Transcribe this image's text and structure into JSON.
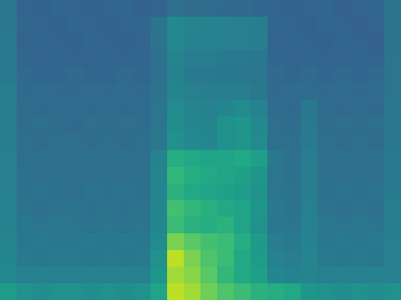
{
  "chart_data": {
    "type": "heatmap",
    "color": "viridis",
    "tick_labels": false,
    "zlim": [
      0,
      1
    ],
    "values": [
      [
        0.4,
        0.32,
        0.31,
        0.33,
        0.32,
        0.31,
        0.32,
        0.33,
        0.31,
        0.32,
        0.36,
        0.35,
        0.35,
        0.34,
        0.34,
        0.33,
        0.32,
        0.31,
        0.32,
        0.33,
        0.31,
        0.32,
        0.33,
        0.38
      ],
      [
        0.4,
        0.33,
        0.32,
        0.31,
        0.33,
        0.32,
        0.31,
        0.32,
        0.33,
        0.38,
        0.47,
        0.45,
        0.44,
        0.44,
        0.43,
        0.42,
        0.33,
        0.32,
        0.31,
        0.33,
        0.32,
        0.31,
        0.32,
        0.38
      ],
      [
        0.41,
        0.32,
        0.33,
        0.32,
        0.31,
        0.33,
        0.32,
        0.31,
        0.32,
        0.38,
        0.47,
        0.44,
        0.44,
        0.43,
        0.43,
        0.42,
        0.32,
        0.33,
        0.32,
        0.31,
        0.33,
        0.32,
        0.31,
        0.38
      ],
      [
        0.41,
        0.33,
        0.32,
        0.33,
        0.32,
        0.32,
        0.33,
        0.32,
        0.33,
        0.37,
        0.45,
        0.42,
        0.42,
        0.41,
        0.41,
        0.4,
        0.33,
        0.32,
        0.33,
        0.32,
        0.32,
        0.33,
        0.32,
        0.39
      ],
      [
        0.41,
        0.34,
        0.33,
        0.33,
        0.34,
        0.33,
        0.33,
        0.34,
        0.33,
        0.37,
        0.44,
        0.41,
        0.41,
        0.4,
        0.4,
        0.39,
        0.34,
        0.33,
        0.34,
        0.33,
        0.34,
        0.33,
        0.34,
        0.39
      ],
      [
        0.42,
        0.34,
        0.35,
        0.34,
        0.34,
        0.35,
        0.34,
        0.35,
        0.34,
        0.38,
        0.45,
        0.43,
        0.42,
        0.42,
        0.42,
        0.4,
        0.34,
        0.35,
        0.35,
        0.34,
        0.35,
        0.34,
        0.35,
        0.39
      ],
      [
        0.42,
        0.35,
        0.34,
        0.35,
        0.35,
        0.34,
        0.35,
        0.34,
        0.35,
        0.39,
        0.48,
        0.45,
        0.44,
        0.46,
        0.48,
        0.44,
        0.35,
        0.34,
        0.4,
        0.35,
        0.34,
        0.35,
        0.34,
        0.4
      ],
      [
        0.42,
        0.35,
        0.36,
        0.35,
        0.34,
        0.36,
        0.35,
        0.36,
        0.35,
        0.39,
        0.49,
        0.46,
        0.45,
        0.5,
        0.52,
        0.47,
        0.36,
        0.35,
        0.41,
        0.35,
        0.36,
        0.35,
        0.36,
        0.4
      ],
      [
        0.42,
        0.36,
        0.35,
        0.36,
        0.36,
        0.35,
        0.36,
        0.35,
        0.36,
        0.4,
        0.5,
        0.47,
        0.46,
        0.5,
        0.52,
        0.48,
        0.36,
        0.36,
        0.41,
        0.36,
        0.35,
        0.36,
        0.35,
        0.4
      ],
      [
        0.43,
        0.36,
        0.37,
        0.36,
        0.36,
        0.37,
        0.36,
        0.37,
        0.36,
        0.44,
        0.62,
        0.6,
        0.58,
        0.58,
        0.6,
        0.56,
        0.4,
        0.37,
        0.42,
        0.36,
        0.37,
        0.36,
        0.37,
        0.41
      ],
      [
        0.43,
        0.37,
        0.36,
        0.37,
        0.37,
        0.36,
        0.37,
        0.36,
        0.37,
        0.45,
        0.66,
        0.62,
        0.6,
        0.58,
        0.57,
        0.52,
        0.39,
        0.37,
        0.42,
        0.37,
        0.36,
        0.37,
        0.36,
        0.41
      ],
      [
        0.43,
        0.37,
        0.38,
        0.37,
        0.36,
        0.38,
        0.37,
        0.38,
        0.37,
        0.45,
        0.64,
        0.6,
        0.58,
        0.57,
        0.55,
        0.5,
        0.39,
        0.38,
        0.42,
        0.37,
        0.38,
        0.37,
        0.38,
        0.41
      ],
      [
        0.44,
        0.38,
        0.37,
        0.38,
        0.38,
        0.37,
        0.38,
        0.37,
        0.38,
        0.46,
        0.7,
        0.66,
        0.63,
        0.6,
        0.58,
        0.52,
        0.4,
        0.38,
        0.43,
        0.38,
        0.37,
        0.38,
        0.37,
        0.42
      ],
      [
        0.44,
        0.4,
        0.39,
        0.4,
        0.39,
        0.38,
        0.39,
        0.38,
        0.39,
        0.46,
        0.68,
        0.64,
        0.62,
        0.64,
        0.58,
        0.5,
        0.4,
        0.39,
        0.43,
        0.4,
        0.39,
        0.4,
        0.39,
        0.42
      ],
      [
        0.45,
        0.4,
        0.41,
        0.4,
        0.4,
        0.41,
        0.4,
        0.41,
        0.4,
        0.48,
        0.8,
        0.74,
        0.7,
        0.68,
        0.62,
        0.54,
        0.42,
        0.41,
        0.44,
        0.4,
        0.41,
        0.4,
        0.41,
        0.43
      ],
      [
        0.46,
        0.41,
        0.4,
        0.41,
        0.41,
        0.4,
        0.41,
        0.4,
        0.41,
        0.5,
        0.9,
        0.8,
        0.72,
        0.68,
        0.6,
        0.55,
        0.44,
        0.42,
        0.45,
        0.41,
        0.4,
        0.41,
        0.4,
        0.43
      ],
      [
        0.47,
        0.43,
        0.44,
        0.43,
        0.43,
        0.44,
        0.43,
        0.44,
        0.43,
        0.52,
        0.86,
        0.82,
        0.74,
        0.66,
        0.6,
        0.56,
        0.46,
        0.44,
        0.45,
        0.43,
        0.44,
        0.43,
        0.44,
        0.44
      ],
      [
        0.55,
        0.5,
        0.49,
        0.5,
        0.5,
        0.49,
        0.5,
        0.49,
        0.5,
        0.58,
        0.9,
        0.86,
        0.78,
        0.72,
        0.68,
        0.64,
        0.62,
        0.6,
        0.52,
        0.5,
        0.49,
        0.5,
        0.49,
        0.5
      ]
    ]
  }
}
